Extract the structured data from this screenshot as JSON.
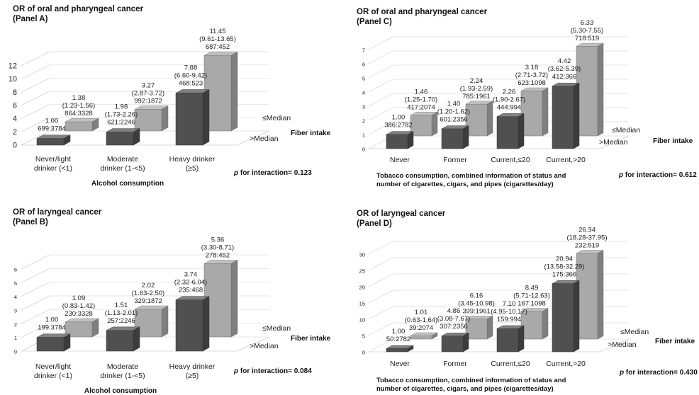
{
  "chart_data": [
    {
      "panel": "A",
      "type": "bar",
      "title": "OR of oral and pharyngeal cancer",
      "subtitle": "(Panel A)",
      "xlabel": "Alcohol consumption",
      "depth_axis_label": "Fiber intake",
      "categories": [
        "Never/light drinker (<1)",
        "Moderate drinker (1-<5)",
        "Heavy drinker (≥5)"
      ],
      "series": [
        {
          "name": ">Median",
          "values": [
            1.0,
            1.98,
            7.88
          ],
          "ci": [
            "",
            "(1.73-2.26)",
            "(6.60-9.42)"
          ],
          "counts": [
            "699:3784",
            "621:2246",
            "468:523"
          ]
        },
        {
          "name": "≤Median",
          "values": [
            1.38,
            3.27,
            11.45
          ],
          "ci": [
            "(1.23-1.56)",
            "(2.87-3.72)",
            "(9.61-13.65)"
          ],
          "counts": [
            "864:3328",
            "992:1872",
            "687:452"
          ]
        }
      ],
      "y_ticks": [
        "0",
        "2",
        "4",
        "6",
        "8",
        "10",
        "12"
      ],
      "ylim": [
        0,
        12
      ],
      "interaction_prefix": "p",
      "interaction_text": "for interaction= 0.123",
      "colors": {
        "front": "#505050",
        "back": "#a9a9a9"
      }
    },
    {
      "panel": "C",
      "type": "bar",
      "title": "OR of oral and pharyngeal cancer",
      "subtitle": "(Panel C)",
      "xlabel": "Tobacco consumption, combined information of status and number of cigarettes, cigars, and pipes (cigarettes/day)",
      "depth_axis_label": "Fiber intake",
      "categories": [
        "Never",
        "Former",
        "Current,≤20",
        "Current,>20"
      ],
      "series": [
        {
          "name": ">Median",
          "values": [
            1.0,
            1.4,
            2.26,
            4.42
          ],
          "ci": [
            "",
            "(1.20-1.62)",
            "(1.90-2.67)",
            "(3.62-5.39)"
          ],
          "counts": [
            "386:2782",
            "601:2356",
            "444:994",
            "412:366"
          ]
        },
        {
          "name": "≤Median",
          "values": [
            1.46,
            2.24,
            3.18,
            6.33
          ],
          "ci": [
            "(1.25-1.70)",
            "(1.93-2.59)",
            "(2.71-3.72)",
            "(5.30-7.55)"
          ],
          "counts": [
            "417:2074",
            "785:1961",
            "623:1098",
            "718:519"
          ]
        }
      ],
      "y_ticks": [
        "0",
        "1",
        "2",
        "3",
        "4",
        "5",
        "6",
        "7"
      ],
      "ylim": [
        0,
        7
      ],
      "interaction_prefix": "p",
      "interaction_text": "for interaction= 0.612",
      "colors": {
        "front": "#505050",
        "back": "#a9a9a9"
      }
    },
    {
      "panel": "B",
      "type": "bar",
      "title": "OR of laryngeal cancer",
      "subtitle": "(Panel B)",
      "xlabel": "Alcohol consumption",
      "depth_axis_label": "Fiber intake",
      "categories": [
        "Never/light drinker (<1)",
        "Moderate drinker (1-<5)",
        "Heavy drinker (≥5)"
      ],
      "series": [
        {
          "name": ">Median",
          "values": [
            1.0,
            1.51,
            3.74
          ],
          "ci": [
            "",
            "(1.13-2.01)",
            "(2.32-6.04)"
          ],
          "counts": [
            "199:3784",
            "257:2246",
            "235:468"
          ]
        },
        {
          "name": "≤Median",
          "values": [
            1.09,
            2.02,
            5.36
          ],
          "ci": [
            "(0.83-1.42)",
            "(1.63-2.50)",
            "(3.30-8.71)"
          ],
          "counts": [
            "230:3328",
            "329:1872",
            "278:452"
          ]
        }
      ],
      "y_ticks": [
        "0",
        "1",
        "2",
        "3",
        "4",
        "5",
        "6"
      ],
      "ylim": [
        0,
        6
      ],
      "interaction_prefix": "p",
      "interaction_text": "for interaction= 0.084",
      "colors": {
        "front": "#505050",
        "back": "#a9a9a9"
      }
    },
    {
      "panel": "D",
      "type": "bar",
      "title": "OR of laryngeal cancer",
      "subtitle": "(Panel D)",
      "xlabel": "Tobacco consumption, combined information of status and number of cigarettes, cigars, and pipes (cigarettes/day)",
      "depth_axis_label": "Fiber intake",
      "categories": [
        "Never",
        "Former",
        "Current,≤20",
        "Current,>20"
      ],
      "series": [
        {
          "name": ">Median",
          "values": [
            1.0,
            4.86,
            7.1,
            20.94
          ],
          "ci": [
            "",
            "(3.08-7.67)",
            "(4.95-10.17)",
            "(13.58-32.29)"
          ],
          "counts": [
            "50:2782",
            "307:2356",
            "159:994",
            "175:366"
          ]
        },
        {
          "name": "≤Median",
          "values": [
            1.01,
            6.16,
            8.49,
            26.34
          ],
          "ci": [
            "(0.63-1.64)",
            "(3.45-10.98)",
            "(5.71-12.63)",
            "(18.28-37.95)"
          ],
          "counts": [
            "39:2074",
            "399:1961",
            "167:1098",
            "232:519"
          ]
        }
      ],
      "y_ticks": [
        "0",
        "5",
        "10",
        "15",
        "20",
        "25",
        "30"
      ],
      "ylim": [
        0,
        30
      ],
      "interaction_prefix": "p",
      "interaction_text": "for interaction= 0.430",
      "colors": {
        "front": "#505050",
        "back": "#a9a9a9"
      }
    }
  ]
}
